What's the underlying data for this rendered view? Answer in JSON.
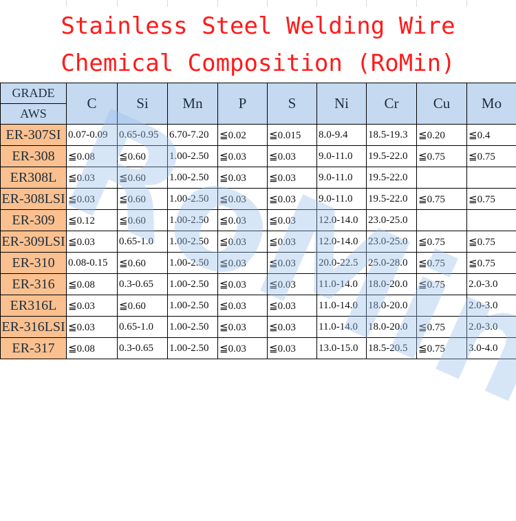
{
  "title_lines": [
    "Stainless Steel Welding Wire",
    "Chemical Composition (RoMin)"
  ],
  "watermark": "RoMin",
  "table": {
    "grade_header": "GRADE",
    "aws_header": "AWS",
    "element_headers": [
      "C",
      "Si",
      "Mn",
      "P",
      "S",
      "Ni",
      "Cr",
      "Cu",
      "Mo"
    ],
    "rows": [
      {
        "grade": "ER-307SI",
        "values": [
          "0.07-0.09",
          "0.65-0.95",
          "6.70-7.20",
          "≦0.02",
          "≦0.015",
          "8.0-9.4",
          "18.5-19.3",
          "≦0.20",
          "≦0.4"
        ]
      },
      {
        "grade": "ER-308",
        "values": [
          "≦0.08",
          "≦0.60",
          "1.00-2.50",
          "≦0.03",
          "≦0.03",
          "9.0-11.0",
          "19.5-22.0",
          "≦0.75",
          "≦0.75"
        ]
      },
      {
        "grade": "ER308L",
        "values": [
          "≦0.03",
          "≦0.60",
          "1.00-2.50",
          "≦0.03",
          "≦0.03",
          "9.0-11.0",
          "19.5-22.0",
          "",
          ""
        ]
      },
      {
        "grade": "ER-308LSI",
        "values": [
          "≦0.03",
          "≦0.60",
          "1.00-2.50",
          "≦0.03",
          "≦0.03",
          "9.0-11.0",
          "19.5-22.0",
          "≦0.75",
          "≦0.75"
        ]
      },
      {
        "grade": "ER-309",
        "values": [
          "≦0.12",
          "≦0.60",
          "1.00-2.50",
          "≦0.03",
          "≦0.03",
          "12.0-14.0",
          "23.0-25.0",
          "",
          ""
        ]
      },
      {
        "grade": "ER-309LSI",
        "values": [
          "≦0.03",
          "0.65-1.0",
          "1.00-2.50",
          "≦0.03",
          "≦0.03",
          "12.0-14.0",
          "23.0-25.0",
          "≦0.75",
          "≦0.75"
        ]
      },
      {
        "grade": "ER-310",
        "values": [
          "0.08-0.15",
          "≦0.60",
          "1.00-2.50",
          "≦0.03",
          "≦0.03",
          "20.0-22.5",
          "25.0-28.0",
          "≦0.75",
          "≦0.75"
        ]
      },
      {
        "grade": "ER-316",
        "values": [
          "≦0.08",
          "0.3-0.65",
          "1.00-2.50",
          "≦0.03",
          "≦0.03",
          "11.0-14.0",
          "18.0-20.0",
          "≦0.75",
          "2.0-3.0"
        ]
      },
      {
        "grade": "ER316L",
        "values": [
          "≦0.03",
          "≦0.60",
          "1.00-2.50",
          "≦0.03",
          "≦0.03",
          "11.0-14.0",
          "18.0-20.0",
          "",
          "2.0-3.0"
        ]
      },
      {
        "grade": "ER-316LSI",
        "values": [
          "≦0.03",
          "0.65-1.0",
          "1.00-2.50",
          "≦0.03",
          "≦0.03",
          "11.0-14.0",
          "18.0-20.0",
          "≦0.75",
          "2.0-3.0"
        ]
      },
      {
        "grade": "ER-317",
        "values": [
          "≦0.08",
          "0.3-0.65",
          "1.00-2.50",
          "≦0.03",
          "≦0.03",
          "13.0-15.0",
          "18.5-20.5",
          "≦0.75",
          "3.0-4.0"
        ]
      }
    ]
  },
  "colors": {
    "title": "#ff1a1a",
    "header_bg": "#c5d9f1",
    "grade_bg": "#fac08f",
    "watermark": "#96bee8"
  }
}
